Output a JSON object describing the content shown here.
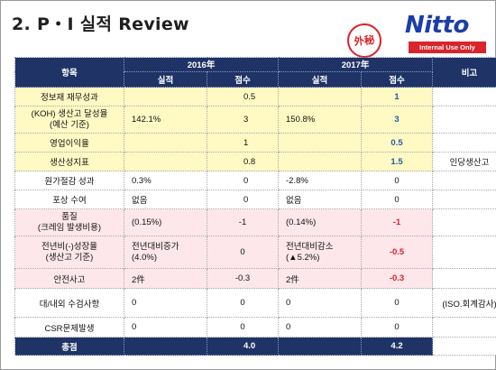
{
  "header": {
    "title": "2. P・I 실적 Review",
    "stamp_text": "外秘",
    "logo_text": "Nitto",
    "internal_label": "Internal Use Only"
  },
  "colors": {
    "header_bg": "#1f3366",
    "yellow_row": "#fff9c4",
    "pink_row": "#fde7ea",
    "accent_red": "#d9242a",
    "accent_blue": "#1e5fa8",
    "logo_blue": "#1c3ea8"
  },
  "table": {
    "col_item": "항목",
    "year_2016": "2016年",
    "year_2017": "2017年",
    "col_note": "비고",
    "sub_result": "실적",
    "sub_score": "점수",
    "rows": [
      {
        "item": "정보재 재무성과",
        "r2016": "",
        "s2016": "0.5",
        "r2017": "",
        "s2017": "1",
        "note": ""
      },
      {
        "item": "(KOH) 생산고 달성율",
        "item2": "(예산 기준)",
        "r2016": "142.1%",
        "s2016": "3",
        "r2017": "150.8%",
        "s2017": "3",
        "note": ""
      },
      {
        "item": "영업이익율",
        "r2016": "",
        "s2016": "1",
        "r2017": "",
        "s2017": "0.5",
        "note": ""
      },
      {
        "item": "생산성지표",
        "r2016": "",
        "s2016": "0.8",
        "r2017": "",
        "s2017": "1.5",
        "note": "인당생산고"
      },
      {
        "item": "원가절감 성과",
        "r2016": "0.3%",
        "s2016": "0",
        "r2017": "-2.8%",
        "s2017": "0",
        "note": ""
      },
      {
        "item": "포상 수여",
        "r2016": "없음",
        "s2016": "0",
        "r2017": "없음",
        "s2017": "0",
        "note": ""
      },
      {
        "item": "품질",
        "item2": "(크레임 발생비용)",
        "r2016": "(0.15%)",
        "s2016": "-1",
        "r2017": "(0.14%)",
        "s2017": "-1",
        "note": ""
      },
      {
        "item": "전년비(-)성장율",
        "item2": "(생산고 기준)",
        "r2016": "전년대비증가",
        "r2016b": "(4.0%)",
        "s2016": "0",
        "r2017": "전년대비감소",
        "r2017b": "(▲5.2%)",
        "s2017": "-0.5",
        "note": ""
      },
      {
        "item": "안전사고",
        "r2016": "2件",
        "s2016": "-0.3",
        "r2017": "2件",
        "s2017": "-0.3",
        "note": ""
      },
      {
        "item": "대/내외 수검사항",
        "r2016": "0",
        "s2016": "0",
        "r2017": "0",
        "s2017": "0",
        "note": "(ISO.회계감사)"
      },
      {
        "item": "CSR문제발생",
        "r2016": "0",
        "s2016": "0",
        "r2017": "0",
        "s2017": "0",
        "note": ""
      }
    ],
    "total": {
      "label": "총점",
      "s2016": "4.0",
      "s2017": "4.2"
    }
  }
}
